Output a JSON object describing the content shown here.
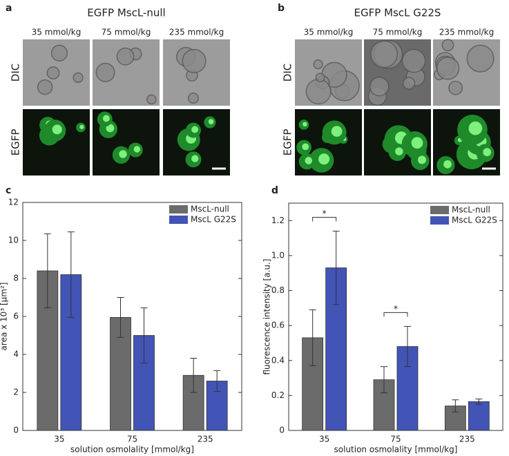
{
  "figure": {
    "panels": [
      {
        "label": "a",
        "title": "EGFP MscL-null",
        "columns": [
          "35 mmol/kg",
          "75 mmol/kg",
          "235 mmol/kg"
        ],
        "rows": [
          "DIC",
          "EGFP"
        ]
      },
      {
        "label": "b",
        "title": "EGFP MscL G22S",
        "columns": [
          "35 mmol/kg",
          "75 mmol/kg",
          "235 mmol/kg"
        ],
        "rows": [
          "DIC",
          "EGFP"
        ]
      }
    ]
  },
  "chart_data": [
    {
      "type": "bar",
      "panel_label": "c",
      "categories": [
        "35",
        "75",
        "235"
      ],
      "x_label": "solution osmolality [mmol/kg]",
      "y_label": "area x 10³ [µm²]",
      "ylim": [
        0,
        12
      ],
      "yticks": [
        0,
        2,
        4,
        6,
        8,
        10,
        12
      ],
      "legend": "upper right",
      "series": [
        {
          "name": "MscL-null",
          "color": "#6b6b6b",
          "values": [
            8.4,
            5.95,
            2.9
          ],
          "errors": [
            1.95,
            1.05,
            0.9
          ]
        },
        {
          "name": "MscL G22S",
          "color": "#4254b5",
          "values": [
            8.2,
            5.0,
            2.6
          ],
          "errors": [
            2.25,
            1.45,
            0.55
          ]
        }
      ]
    },
    {
      "type": "bar",
      "panel_label": "d",
      "categories": [
        "35",
        "75",
        "235"
      ],
      "x_label": "solution osmolality [mmol/kg]",
      "y_label": "fluorescence intensity [a.u.]",
      "ylim": [
        0,
        1.3
      ],
      "yticks": [
        0,
        0.2,
        0.4,
        0.6,
        0.8,
        {
          "value": 1,
          "label": "1.0"
        },
        1.2
      ],
      "legend": "upper right",
      "annotations": [
        "*",
        "*"
      ],
      "series": [
        {
          "name": "MscL-null",
          "color": "#6b6b6b",
          "values": [
            0.53,
            0.29,
            0.14
          ],
          "errors": [
            0.16,
            0.075,
            0.035
          ]
        },
        {
          "name": "MscL G22S",
          "color": "#4254b5",
          "values": [
            0.93,
            0.48,
            0.165
          ],
          "errors": [
            0.21,
            0.115,
            0.015
          ]
        }
      ]
    }
  ]
}
